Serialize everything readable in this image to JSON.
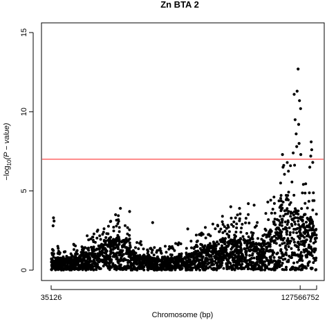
{
  "chart_data": {
    "type": "scatter",
    "title": "Zn BTA 2",
    "xlabel": "Chromosome (bp)",
    "ylabel": "-log10(P - value)",
    "ylabel_parts": {
      "prefix": "−log",
      "sub": "10",
      "suffix": "(P − value)"
    },
    "x_ticks": [
      "35126",
      "127566752"
    ],
    "xlim": [
      35126,
      136000000
    ],
    "ylim": [
      0,
      15
    ],
    "y_ticks": [
      "0",
      "5",
      "10",
      "15"
    ],
    "threshold": {
      "value": 7,
      "color": "#ff6666"
    },
    "point_color": "#000000",
    "grid": false,
    "profile": [
      {
        "x": 0.0,
        "base": 0.5,
        "peak": 0.6
      },
      {
        "x": 0.4,
        "base": 0.9,
        "peak": 1.5
      },
      {
        "x": 1.0,
        "base": 1.2,
        "peak": 3.0
      },
      {
        "x": 3.0,
        "base": 0.8,
        "peak": 1.8
      },
      {
        "x": 8.0,
        "base": 0.7,
        "peak": 1.4
      },
      {
        "x": 15.0,
        "base": 0.9,
        "peak": 1.9
      },
      {
        "x": 22.0,
        "base": 1.2,
        "peak": 2.5
      },
      {
        "x": 28.0,
        "base": 1.8,
        "peak": 3.3
      },
      {
        "x": 34.0,
        "base": 2.1,
        "peak": 3.5
      },
      {
        "x": 40.0,
        "base": 1.3,
        "peak": 2.6
      },
      {
        "x": 48.0,
        "base": 0.8,
        "peak": 1.8
      },
      {
        "x": 58.0,
        "base": 0.7,
        "peak": 1.6
      },
      {
        "x": 66.0,
        "base": 0.9,
        "peak": 1.8
      },
      {
        "x": 74.0,
        "base": 1.1,
        "peak": 2.2
      },
      {
        "x": 80.0,
        "base": 1.4,
        "peak": 2.9
      },
      {
        "x": 86.0,
        "base": 1.8,
        "peak": 3.4
      },
      {
        "x": 94.0,
        "base": 2.0,
        "peak": 3.6
      },
      {
        "x": 102.0,
        "base": 1.9,
        "peak": 3.5
      },
      {
        "x": 108.0,
        "base": 1.6,
        "peak": 3.0
      },
      {
        "x": 113.0,
        "base": 2.6,
        "peak": 4.6
      },
      {
        "x": 118.0,
        "base": 3.8,
        "peak": 6.0
      },
      {
        "x": 121.0,
        "base": 4.5,
        "peak": 8.0
      },
      {
        "x": 124.0,
        "base": 4.0,
        "peak": 7.0
      },
      {
        "x": 127.5,
        "base": 3.5,
        "peak": 6.2
      },
      {
        "x": 130.0,
        "base": 3.2,
        "peak": 5.5
      },
      {
        "x": 133.0,
        "base": 3.4,
        "peak": 6.6
      },
      {
        "x": 136.0,
        "base": 2.5,
        "peak": 4.0
      }
    ],
    "highlights": [
      {
        "x": 1.2,
        "y": 3.3
      },
      {
        "x": 1.5,
        "y": 3.1
      },
      {
        "x": 1.0,
        "y": 2.8
      },
      {
        "x": 35.5,
        "y": 3.9
      },
      {
        "x": 40.2,
        "y": 3.7
      },
      {
        "x": 33.0,
        "y": 3.5
      },
      {
        "x": 52.0,
        "y": 3.0
      },
      {
        "x": 70.0,
        "y": 2.6
      },
      {
        "x": 92.0,
        "y": 4.0
      },
      {
        "x": 96.5,
        "y": 3.9
      },
      {
        "x": 101.0,
        "y": 4.2
      },
      {
        "x": 104.0,
        "y": 4.1
      },
      {
        "x": 111.0,
        "y": 4.3
      },
      {
        "x": 118.5,
        "y": 7.3
      },
      {
        "x": 118.8,
        "y": 6.5
      },
      {
        "x": 124.5,
        "y": 11.1
      },
      {
        "x": 126.0,
        "y": 11.3
      },
      {
        "x": 126.5,
        "y": 12.7
      },
      {
        "x": 127.2,
        "y": 10.7
      },
      {
        "x": 127.8,
        "y": 10.2
      },
      {
        "x": 125.0,
        "y": 9.5
      },
      {
        "x": 126.8,
        "y": 9.2
      },
      {
        "x": 125.5,
        "y": 8.6
      },
      {
        "x": 127.0,
        "y": 8.0
      },
      {
        "x": 125.8,
        "y": 7.8
      },
      {
        "x": 124.0,
        "y": 7.4
      },
      {
        "x": 127.9,
        "y": 7.3
      },
      {
        "x": 133.2,
        "y": 8.1
      },
      {
        "x": 133.5,
        "y": 7.6
      },
      {
        "x": 133.0,
        "y": 7.2
      },
      {
        "x": 134.0,
        "y": 6.8
      },
      {
        "x": 132.5,
        "y": 6.5
      }
    ]
  }
}
